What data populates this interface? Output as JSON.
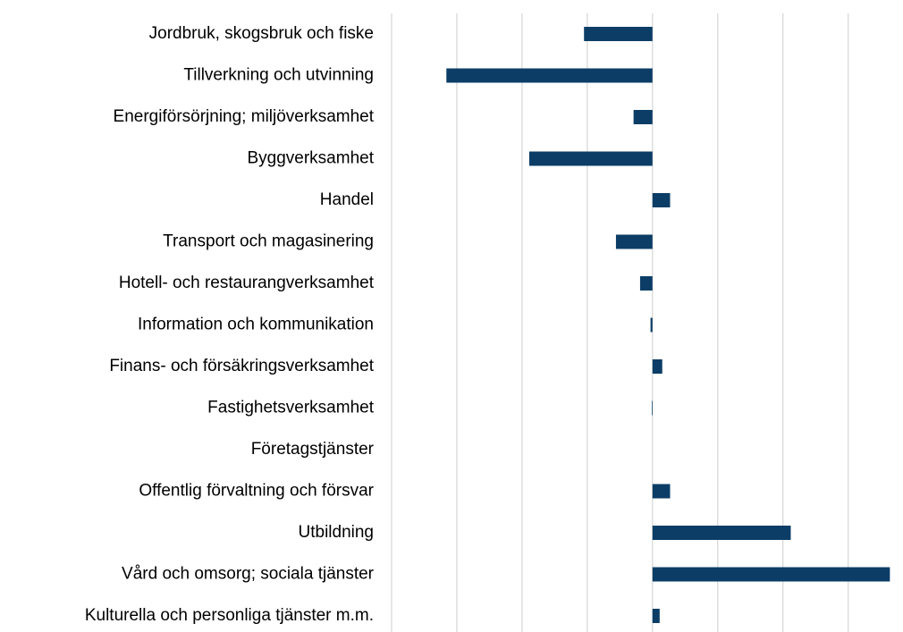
{
  "chart_data": {
    "type": "hbar",
    "categories": [
      "Jordbruk, skogsbruk och fiske",
      "Tillverkning och utvinning",
      "Energiförsörjning; miljöverksamhet",
      "Byggverksamhet",
      "Handel",
      "Transport och magasinering",
      "Hotell- och restaurangverksamhet",
      "Information och kommunikation",
      "Finans- och försäkringsverksamhet",
      "Fastighetsverksamhet",
      "Företagstjänster",
      "Offentlig förvaltning och försvar",
      "Utbildning",
      "Vård och omsorg; sociala tjänster",
      "Kulturella och personliga tjänster m.m."
    ],
    "values": [
      -1.05,
      -3.16,
      -0.29,
      -1.89,
      0.27,
      -0.56,
      -0.19,
      -0.03,
      0.15,
      -0.01,
      0,
      0.27,
      2.12,
      3.64,
      0.11
    ],
    "color": "#0b3d66",
    "xlim": [
      -4,
      3.8
    ],
    "xticks": [
      -4,
      -3,
      -2,
      -1,
      0,
      1,
      2,
      3
    ],
    "grid": true
  }
}
